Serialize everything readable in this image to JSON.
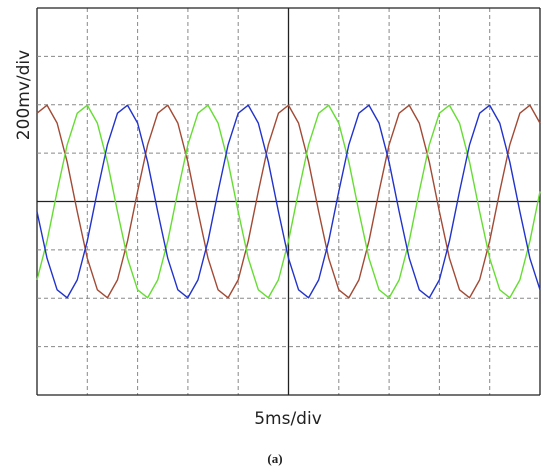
{
  "chart_data": {
    "type": "line",
    "y_label": "200mv/div",
    "x_label": "5ms/div",
    "caption": "(a)",
    "x": [
      0,
      1,
      2,
      3,
      4,
      5,
      6,
      7,
      8,
      9,
      10,
      11,
      12,
      13,
      14,
      15,
      16,
      17,
      18,
      19,
      20,
      21,
      22,
      23,
      24,
      25,
      26,
      27,
      28,
      29,
      30,
      31,
      32,
      33,
      34,
      35,
      36,
      37,
      38,
      39,
      40,
      41,
      42,
      43,
      44,
      45,
      46,
      47,
      48,
      49,
      50
    ],
    "series": [
      {
        "color": "#a24a35",
        "values": [
          365,
          398,
          324,
          163,
          -42,
          -235,
          -365,
          -398,
          -324,
          -163,
          42,
          235,
          365,
          398,
          324,
          163,
          -42,
          -235,
          -365,
          -398,
          -324,
          -163,
          42,
          235,
          365,
          398,
          324,
          163,
          -42,
          -235,
          -365,
          -398,
          -324,
          -163,
          42,
          235,
          365,
          398,
          324,
          163,
          -42,
          -235,
          -365,
          -398,
          -324,
          -163,
          42,
          235,
          365,
          398,
          324
        ]
      },
      {
        "color": "#66dd33",
        "values": [
          -324,
          -163,
          42,
          235,
          365,
          398,
          324,
          163,
          -42,
          -235,
          -365,
          -398,
          -324,
          -163,
          42,
          235,
          365,
          398,
          324,
          163,
          -42,
          -235,
          -365,
          -398,
          -324,
          -163,
          42,
          235,
          365,
          398,
          324,
          163,
          -42,
          -235,
          -365,
          -398,
          -324,
          -163,
          42,
          235,
          365,
          398,
          324,
          163,
          -42,
          -235,
          -365,
          -398,
          -324,
          -163,
          42
        ]
      },
      {
        "color": "#2233cc",
        "values": [
          -42,
          -235,
          -365,
          -398,
          -324,
          -163,
          42,
          235,
          365,
          398,
          324,
          163,
          -42,
          -235,
          -365,
          -398,
          -324,
          -163,
          42,
          235,
          365,
          398,
          324,
          163,
          -42,
          -235,
          -365,
          -398,
          -324,
          -163,
          42,
          235,
          365,
          398,
          324,
          163,
          -42,
          -235,
          -365,
          -398,
          -324,
          -163,
          42,
          235,
          365,
          398,
          324,
          163,
          -42,
          -235,
          -365
        ]
      }
    ],
    "xlim": [
      0,
      50
    ],
    "ylim": [
      -800,
      800
    ],
    "xticks": [
      0,
      5,
      10,
      15,
      20,
      25,
      30,
      35,
      40,
      45,
      50
    ],
    "yticks": [
      -800,
      -600,
      -400,
      -200,
      0,
      200,
      400,
      600,
      800
    ],
    "grid": true
  }
}
